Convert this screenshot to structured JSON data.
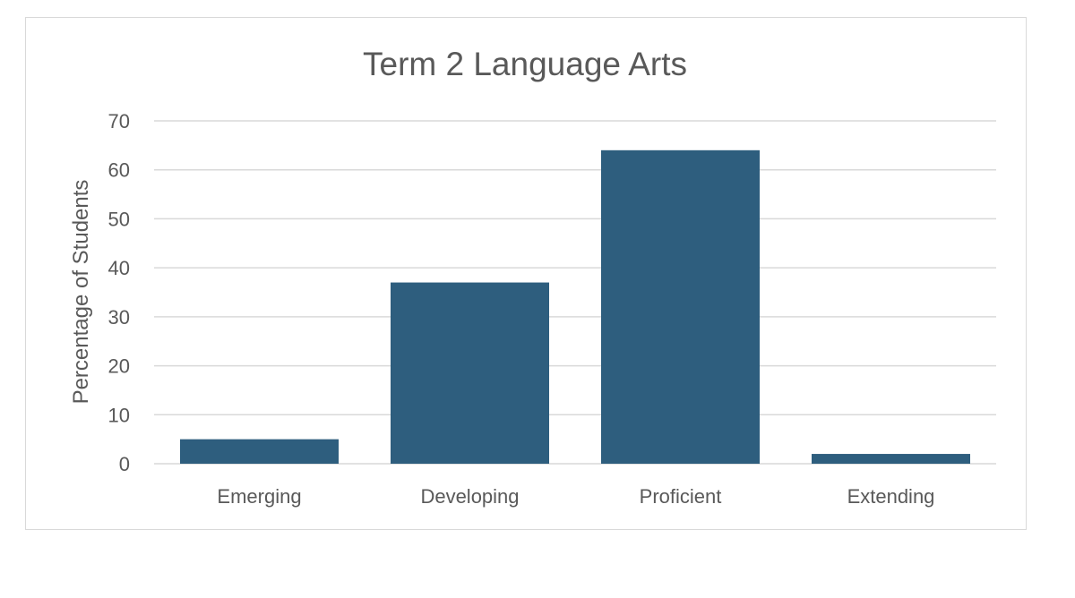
{
  "chart_data": {
    "type": "bar",
    "title": "Term 2 Language Arts",
    "xlabel": "",
    "ylabel": "Percentage of Students",
    "categories": [
      "Emerging",
      "Developing",
      "Proficient",
      "Extending"
    ],
    "values": [
      5,
      37,
      64,
      2
    ],
    "ylim": [
      0,
      70
    ],
    "yticks": [
      "0",
      "10",
      "20",
      "30",
      "40",
      "50",
      "60",
      "70"
    ],
    "grid": true,
    "legend": "none",
    "bar_color": "#2e5e7e"
  }
}
